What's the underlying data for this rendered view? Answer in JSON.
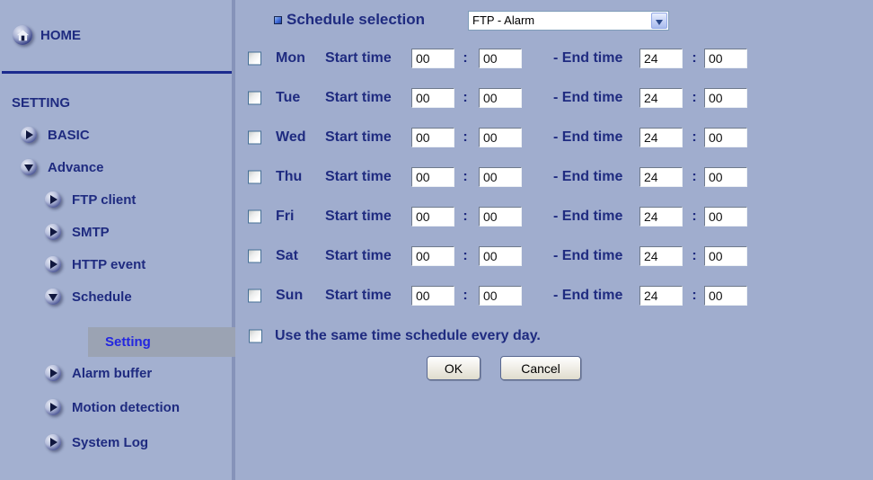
{
  "colors": {
    "background": "#a0adce",
    "nav_text": "#1f2b80",
    "active_link": "#2326e0",
    "active_highlight": "#9ba3b3",
    "divider": "#1c2b8e"
  },
  "sidebar": {
    "home_label": "HOME",
    "section_label": "SETTING",
    "items": [
      {
        "label": "BASIC",
        "level": 1,
        "state": "collapsed"
      },
      {
        "label": "Advance",
        "level": 1,
        "state": "expanded"
      },
      {
        "label": "FTP client",
        "level": 2,
        "state": "collapsed"
      },
      {
        "label": "SMTP",
        "level": 2,
        "state": "collapsed"
      },
      {
        "label": "HTTP event",
        "level": 2,
        "state": "collapsed"
      },
      {
        "label": "Schedule",
        "level": 2,
        "state": "expanded"
      },
      {
        "label": "Setting",
        "level": 3,
        "state": "active"
      },
      {
        "label": "Alarm buffer",
        "level": 2,
        "state": "collapsed"
      },
      {
        "label": "Motion detection",
        "level": 2,
        "state": "collapsed"
      },
      {
        "label": "System Log",
        "level": 2,
        "state": "collapsed"
      }
    ]
  },
  "main": {
    "header": {
      "label": "Schedule selection",
      "value": "FTP - Alarm"
    },
    "row_labels": {
      "start": "Start time",
      "end": "- End time",
      "colon": ":"
    },
    "days": [
      {
        "name": "Mon",
        "checked": false,
        "start_hh": "00",
        "start_mm": "00",
        "end_hh": "24",
        "end_mm": "00"
      },
      {
        "name": "Tue",
        "checked": false,
        "start_hh": "00",
        "start_mm": "00",
        "end_hh": "24",
        "end_mm": "00"
      },
      {
        "name": "Wed",
        "checked": false,
        "start_hh": "00",
        "start_mm": "00",
        "end_hh": "24",
        "end_mm": "00"
      },
      {
        "name": "Thu",
        "checked": false,
        "start_hh": "00",
        "start_mm": "00",
        "end_hh": "24",
        "end_mm": "00"
      },
      {
        "name": "Fri",
        "checked": false,
        "start_hh": "00",
        "start_mm": "00",
        "end_hh": "24",
        "end_mm": "00"
      },
      {
        "name": "Sat",
        "checked": false,
        "start_hh": "00",
        "start_mm": "00",
        "end_hh": "24",
        "end_mm": "00"
      },
      {
        "name": "Sun",
        "checked": false,
        "start_hh": "00",
        "start_mm": "00",
        "end_hh": "24",
        "end_mm": "00"
      }
    ],
    "same_schedule": {
      "label": "Use the same time schedule every day.",
      "checked": false
    },
    "buttons": {
      "ok": "OK",
      "cancel": "Cancel"
    }
  }
}
